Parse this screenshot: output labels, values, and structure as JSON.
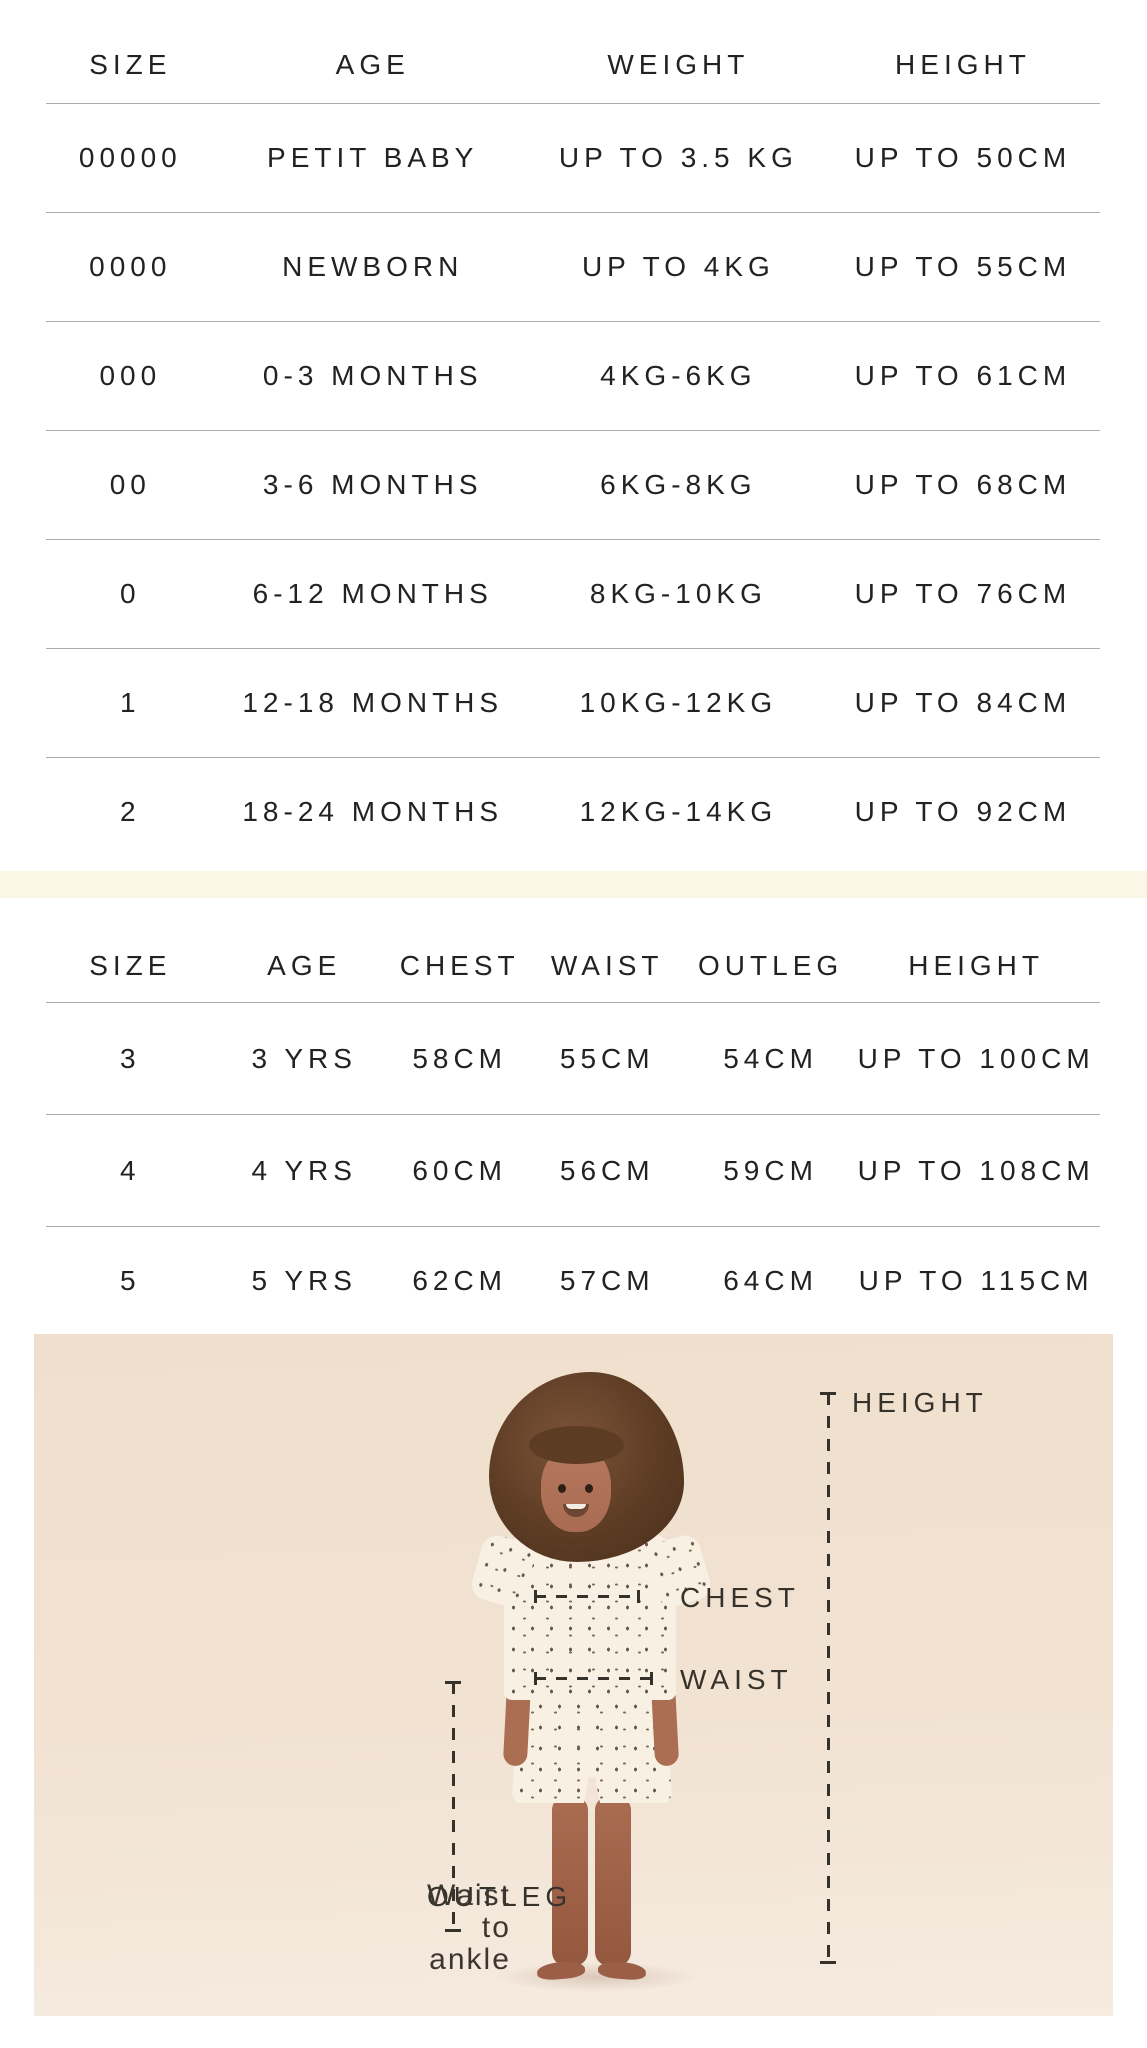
{
  "baby_table": {
    "headers": [
      "SIZE",
      "AGE",
      "WEIGHT",
      "HEIGHT"
    ],
    "rows": [
      [
        "00000",
        "PETIT BABY",
        "UP TO 3.5 KG",
        "UP TO 50CM"
      ],
      [
        "0000",
        "NEWBORN",
        "UP TO 4KG",
        "UP TO 55CM"
      ],
      [
        "000",
        "0-3 MONTHS",
        "4KG-6KG",
        "UP TO 61CM"
      ],
      [
        "00",
        "3-6 MONTHS",
        "6KG-8KG",
        "UP TO 68CM"
      ],
      [
        "0",
        "6-12 MONTHS",
        "8KG-10KG",
        "UP TO 76CM"
      ],
      [
        "1",
        "12-18 MONTHS",
        "10KG-12KG",
        "UP TO 84CM"
      ],
      [
        "2",
        "18-24 MONTHS",
        "12KG-14KG",
        "UP TO 92CM"
      ]
    ]
  },
  "toddler_table": {
    "headers": [
      "SIZE",
      "AGE",
      "CHEST",
      "WAIST",
      "OUTLEG",
      "HEIGHT"
    ],
    "rows": [
      [
        "3",
        "3 YRS",
        "58CM",
        "55CM",
        "54CM",
        "UP TO 100CM"
      ],
      [
        "4",
        "4 YRS",
        "60CM",
        "56CM",
        "59CM",
        "UP TO 108CM"
      ],
      [
        "5",
        "5 YRS",
        "62CM",
        "57CM",
        "64CM",
        "UP TO 115CM"
      ]
    ]
  },
  "diagram": {
    "height_label": "HEIGHT",
    "chest_label": "CHEST",
    "waist_label": "WAIST",
    "outleg_label": "OUTLEG",
    "outleg_sublabel": "Waist to ankle"
  },
  "colors": {
    "page_background": "#ffffff",
    "table_text": "#222222",
    "rule_line": "#ababab",
    "divider_band": "#faf7e7",
    "photo_background_top": "#f0dfcc",
    "photo_background_bottom": "#f5ebdf",
    "annotation": "#35322c",
    "skin": "#ac6e53",
    "hair": "#5d3c24",
    "fabric": "#f7f0e3",
    "fabric_dots": "#6a5b48"
  }
}
